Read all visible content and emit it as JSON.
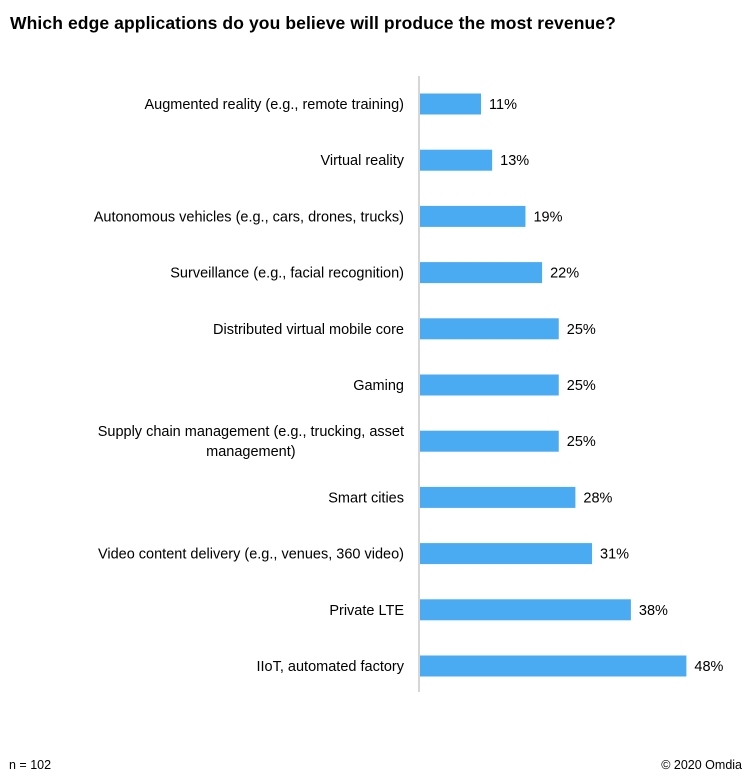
{
  "title": "Which edge applications do you believe will produce the most revenue?",
  "footer": {
    "sample_size": "n = 102",
    "copyright": "© 2020 Omdia"
  },
  "colors": {
    "bar": "#4aabf2",
    "axis": "#bfbfbf"
  },
  "chart_data": {
    "type": "bar",
    "orientation": "horizontal",
    "title": "Which edge applications do you believe will produce the most revenue?",
    "categories": [
      [
        "Augmented reality (e.g., remote training)"
      ],
      [
        "Virtual reality"
      ],
      [
        "Autonomous vehicles (e.g., cars, drones, trucks)"
      ],
      [
        "Surveillance (e.g., facial recognition)"
      ],
      [
        "Distributed virtual mobile core"
      ],
      [
        "Gaming"
      ],
      [
        "Supply chain management (e.g., trucking, asset",
        "management)"
      ],
      [
        "Smart cities"
      ],
      [
        "Video content delivery (e.g., venues, 360 video)"
      ],
      [
        "Private LTE"
      ],
      [
        "IIoT, automated factory"
      ]
    ],
    "values": [
      11,
      13,
      19,
      22,
      25,
      25,
      25,
      28,
      31,
      38,
      48
    ],
    "value_labels": [
      "11%",
      "13%",
      "19%",
      "22%",
      "25%",
      "25%",
      "25%",
      "28%",
      "31%",
      "38%",
      "48%"
    ],
    "xlim": [
      0,
      100
    ],
    "xlabel": "",
    "ylabel": "",
    "grid": false,
    "legend": "none"
  }
}
